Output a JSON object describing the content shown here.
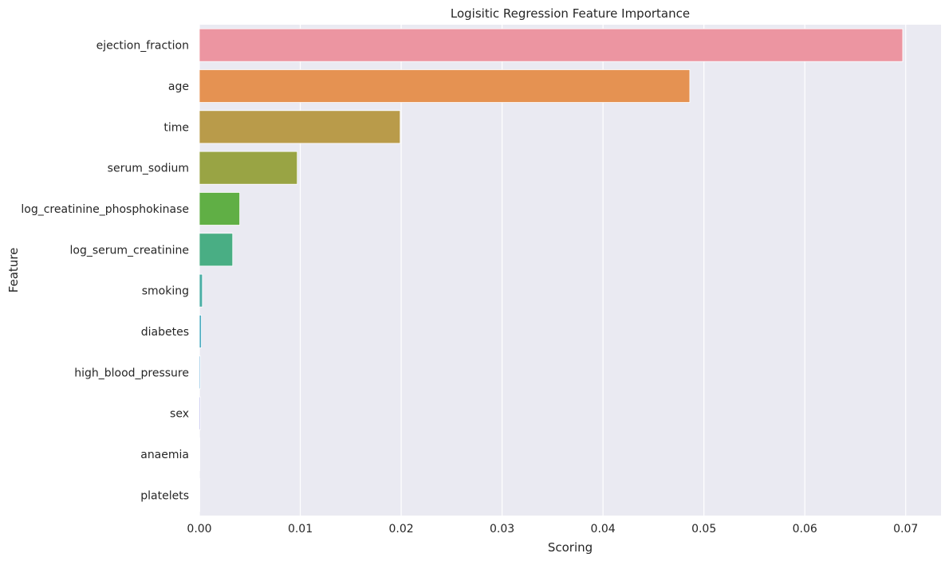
{
  "chart_data": {
    "type": "bar",
    "orientation": "horizontal",
    "title": "Logisitic Regression Feature Importance",
    "xlabel": "Scoring",
    "ylabel": "Feature",
    "xlim": [
      0,
      0.0735
    ],
    "xticks": [
      0.0,
      0.01,
      0.02,
      0.03,
      0.04,
      0.05,
      0.06,
      0.07
    ],
    "xtick_labels": [
      "0.00",
      "0.01",
      "0.02",
      "0.03",
      "0.04",
      "0.05",
      "0.06",
      "0.07"
    ],
    "grid": true,
    "background": "#eaeaf2",
    "categories": [
      "ejection_fraction",
      "age",
      "time",
      "serum_sodium",
      "log_creatinine_phosphokinase",
      "log_serum_creatinine",
      "smoking",
      "diabetes",
      "high_blood_pressure",
      "sex",
      "anaemia",
      "platelets"
    ],
    "values": [
      0.0697,
      0.0486,
      0.0199,
      0.0097,
      0.004,
      0.0033,
      0.0003,
      0.0002,
      0.0001,
      0.0001,
      5e-05,
      3e-05
    ],
    "colors": [
      "#ec95a1",
      "#e59252",
      "#b99b4a",
      "#99a444",
      "#60af45",
      "#49ae84",
      "#4aaea5",
      "#4aaac0",
      "#5aa6d6",
      "#9c9de2",
      "#cc8fe0",
      "#e889cf"
    ]
  }
}
